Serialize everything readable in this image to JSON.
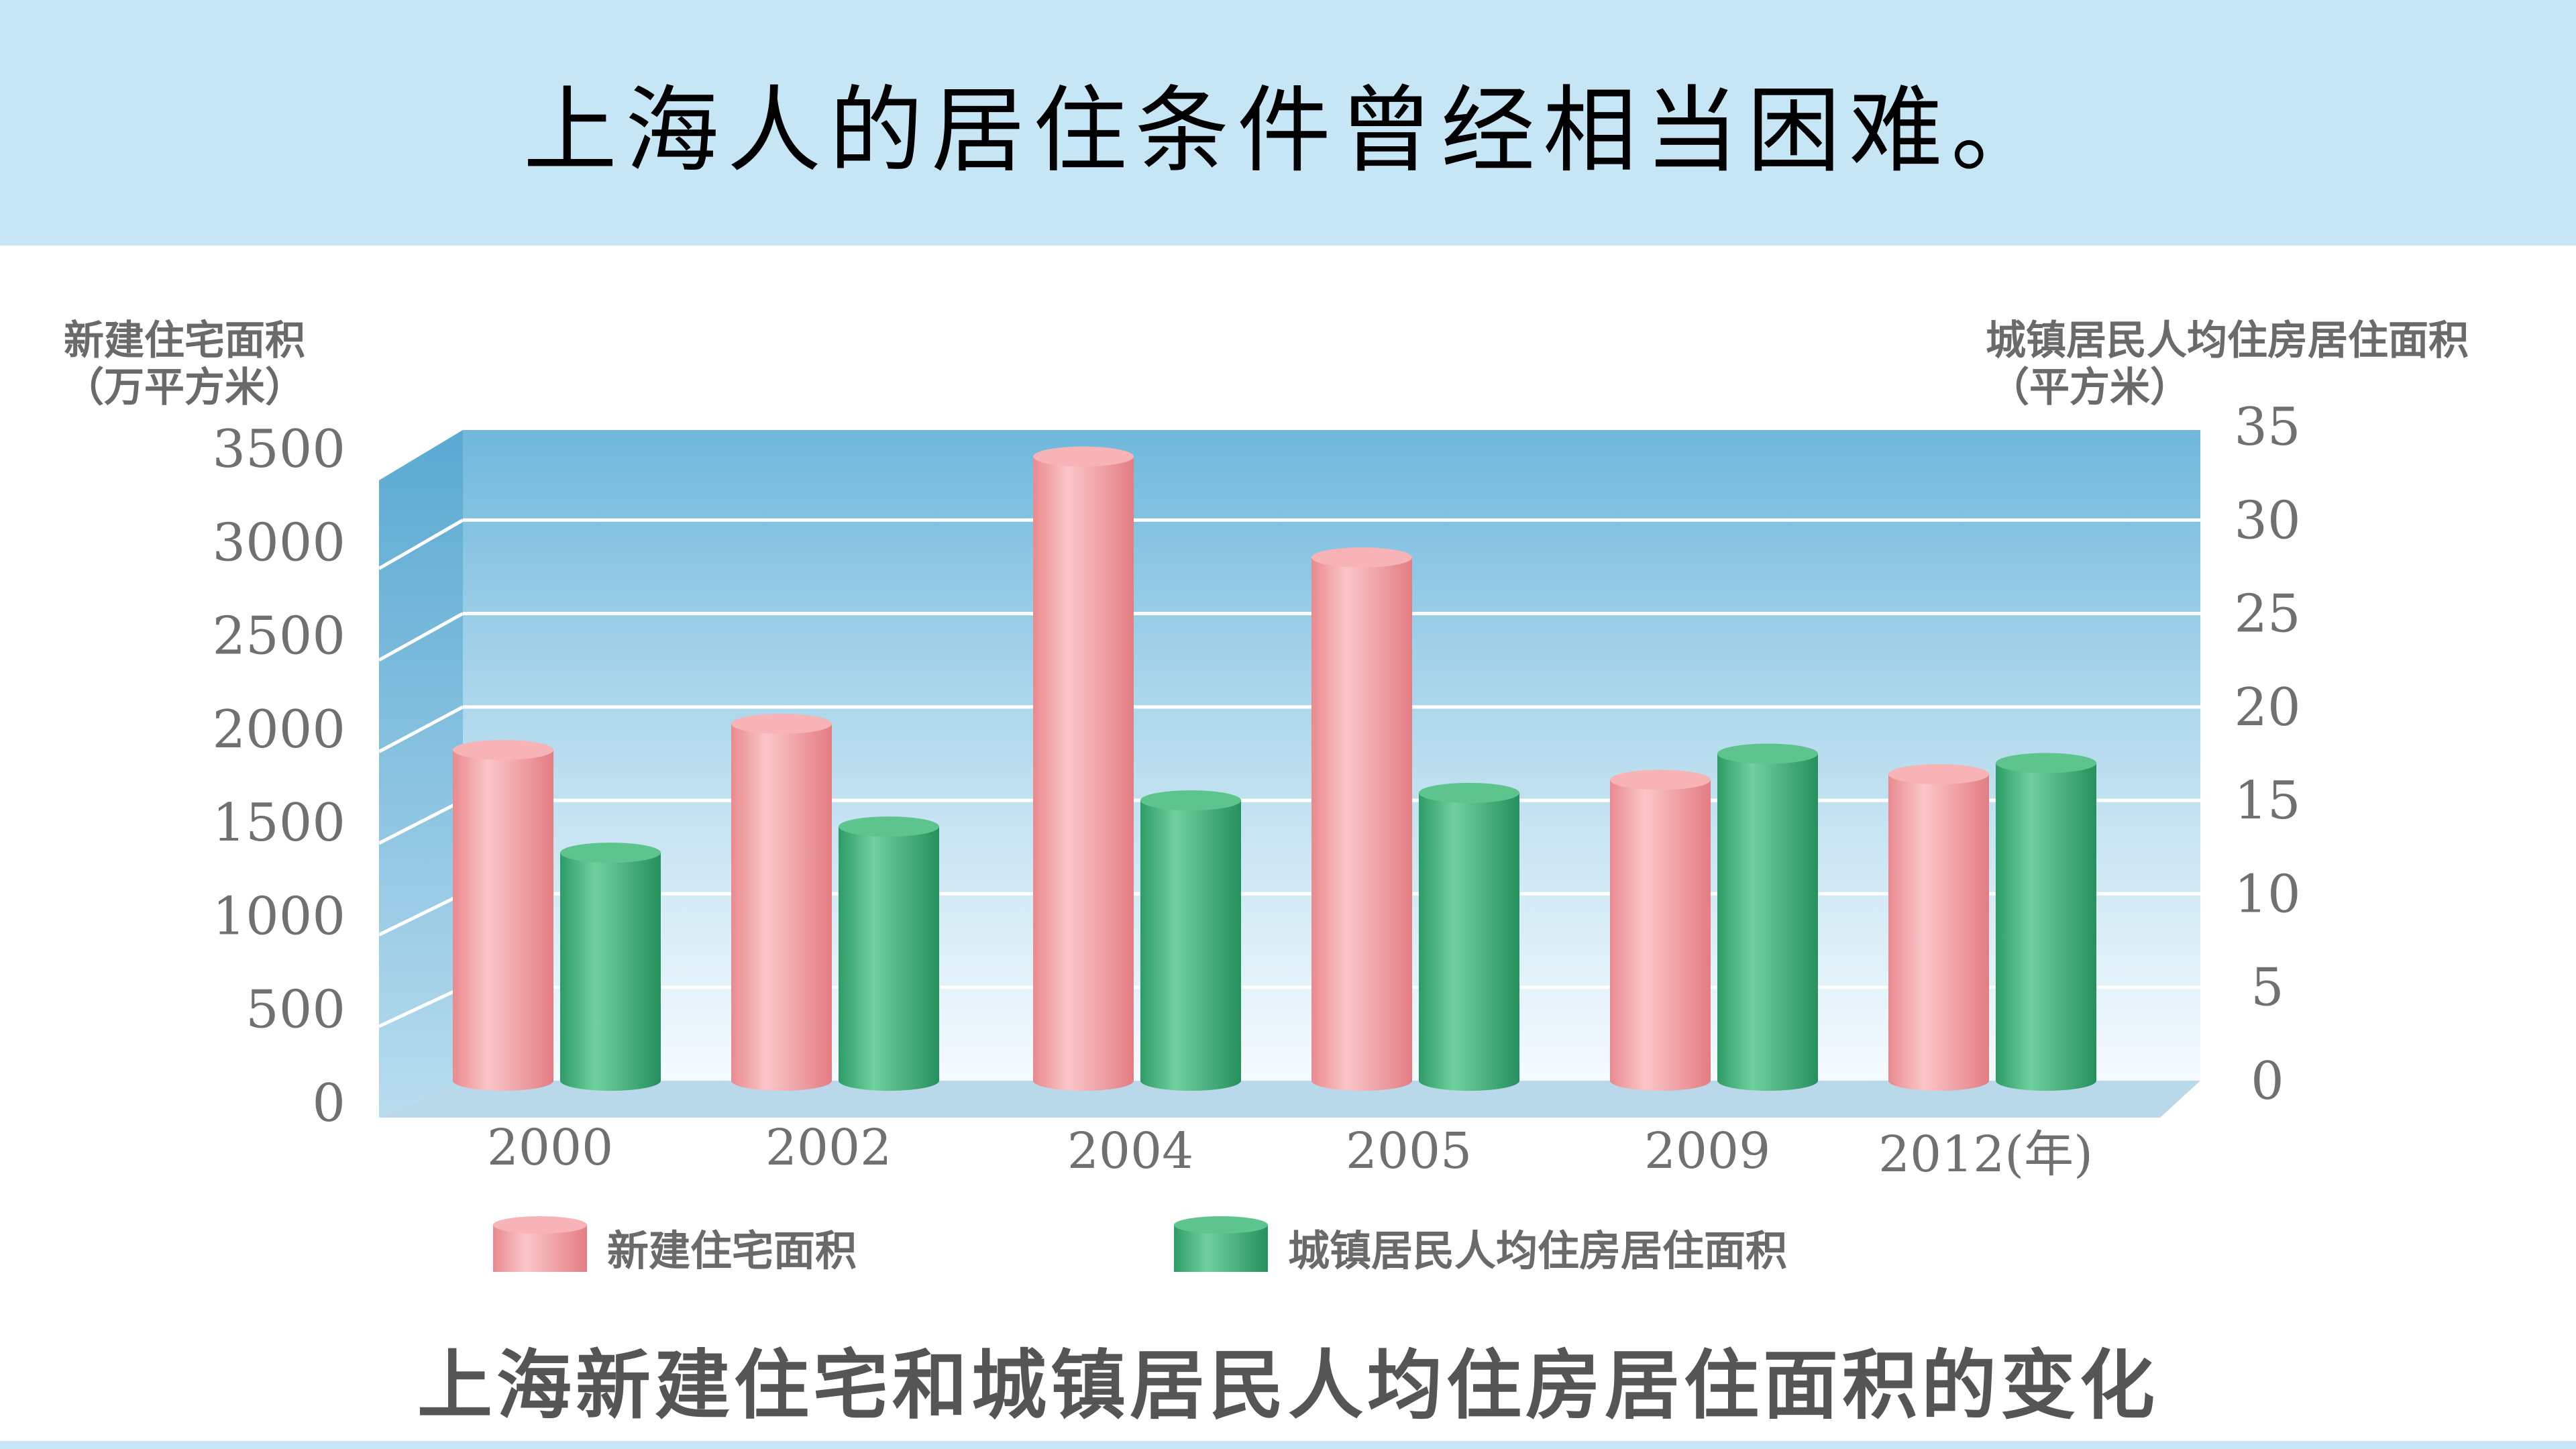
{
  "slide": {
    "title": "上海人的居住条件曾经相当困难。"
  },
  "chart_data": {
    "type": "bar",
    "title": "上海新建住宅和城镇居民人均住房居住面积的变化",
    "categories": [
      "2000",
      "2002",
      "2004",
      "2005",
      "2009",
      "2012(年)"
    ],
    "y_left": {
      "label": "新建住宅面积",
      "unit": "（万平方米）",
      "range": [
        0,
        3500
      ],
      "ticks": [
        "0",
        "500",
        "1000",
        "1500",
        "2000",
        "2500",
        "3000",
        "3500"
      ]
    },
    "y_right": {
      "label": "城镇居民人均住房居住面积",
      "unit": "（平方米）",
      "range": [
        0,
        35
      ],
      "ticks": [
        "0",
        "5",
        "10",
        "15",
        "20",
        "25",
        "30",
        "35"
      ]
    },
    "series": [
      {
        "name": "新建住宅面积",
        "axis": "left",
        "color": "#ee9a9e",
        "values": [
          1770,
          1910,
          3340,
          2800,
          1610,
          1640
        ]
      },
      {
        "name": "城镇居民人均住房居住面积",
        "axis": "right",
        "color": "#3fb07a",
        "values": [
          12.2,
          13.6,
          15.0,
          15.4,
          17.5,
          17.0
        ]
      }
    ],
    "legend_position": "bottom",
    "grid": true
  }
}
